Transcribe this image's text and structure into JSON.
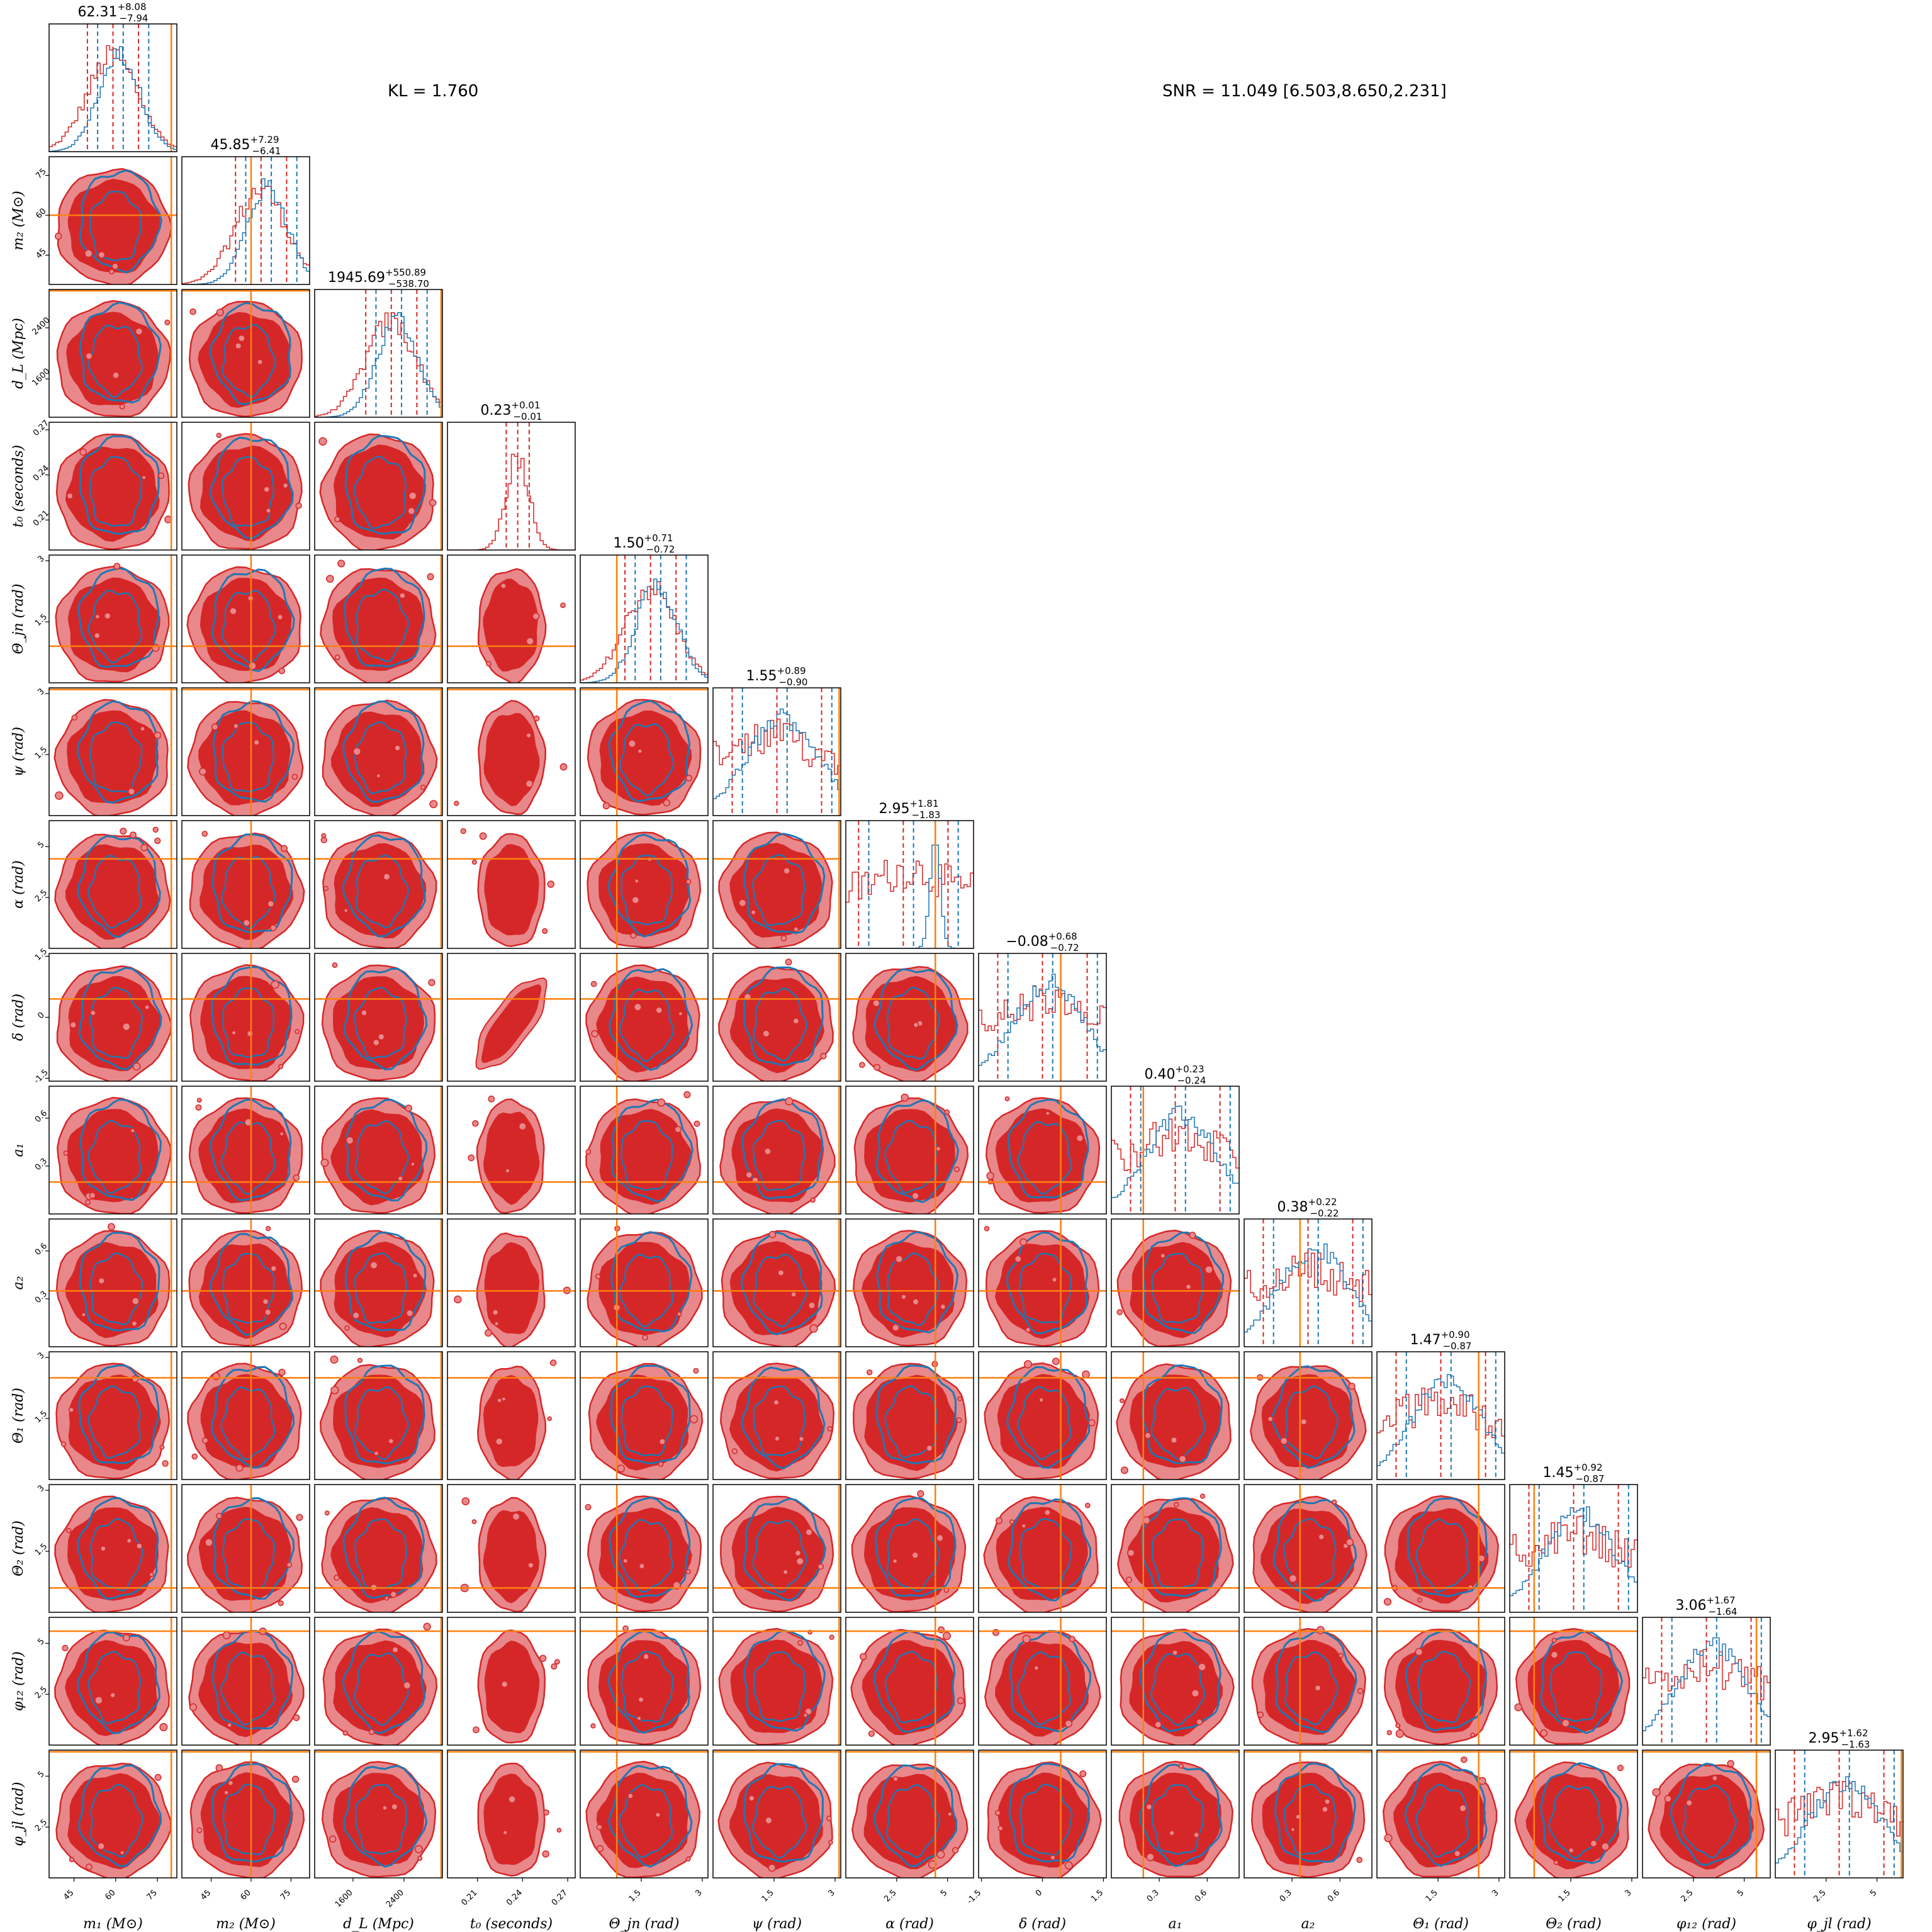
{
  "annotations": {
    "kl": "KL = 1.760",
    "snr": "SNR = 11.049 [6.503,8.650,2.231]"
  },
  "colors": {
    "posterior_a": "#d62728",
    "posterior_a_fill": "#e8888b",
    "posterior_b": "#1f77b4",
    "truth": "#ff7f0e"
  },
  "chart_data": {
    "type": "corner",
    "parameters": [
      {
        "label": "m_1 (M⊙)",
        "display": "m₁ (M⊙)",
        "range": [
          36,
          82
        ],
        "ticks": [
          45,
          60,
          75
        ],
        "truth": 80,
        "title": {
          "median": "62.31",
          "plus": "+8.08",
          "minus": "−7.94"
        }
      },
      {
        "label": "m_2 (M⊙)",
        "display": "m₂ (M⊙)",
        "range": [
          34,
          82
        ],
        "ticks": [
          45,
          60,
          75
        ],
        "truth": 60,
        "title": {
          "median": "45.85",
          "plus": "+7.29",
          "minus": "−6.41"
        }
      },
      {
        "label": "d_L (Mpc)",
        "display": "d_L (Mpc)",
        "range": [
          1000,
          3000
        ],
        "ticks": [
          1600,
          2400
        ],
        "truth": 2980,
        "title": {
          "median": "1945.69",
          "plus": "+550.89",
          "minus": "−538.70"
        }
      },
      {
        "label": "t_0 (seconds)",
        "display": "t₀ (seconds)",
        "range": [
          0.19,
          0.275
        ],
        "ticks": [
          0.21,
          0.24,
          0.27
        ],
        "truth": null,
        "title": {
          "median": "0.23",
          "plus": "+0.01",
          "minus": "−0.01"
        }
      },
      {
        "label": "Θ_jn (rad)",
        "display": "Θ_jn (rad)",
        "range": [
          0,
          3.14
        ],
        "ticks": [
          1.5,
          3.0
        ],
        "truth": 0.9,
        "title": {
          "median": "1.50",
          "plus": "+0.71",
          "minus": "−0.72"
        }
      },
      {
        "label": "ψ (rad)",
        "display": "ψ (rad)",
        "range": [
          0,
          3.14
        ],
        "ticks": [
          1.5,
          3.0
        ],
        "truth": 3.1,
        "title": {
          "median": "1.55",
          "plus": "+0.89",
          "minus": "−0.90"
        }
      },
      {
        "label": "α (rad)",
        "display": "α (rad)",
        "range": [
          0,
          6.28
        ],
        "ticks": [
          2.5,
          5.0
        ],
        "truth": 4.4,
        "title": {
          "median": "2.95",
          "plus": "+1.81",
          "minus": "−1.83"
        }
      },
      {
        "label": "δ (rad)",
        "display": "δ (rad)",
        "range": [
          -1.57,
          1.57
        ],
        "ticks": [
          -1.5,
          0.0,
          1.5
        ],
        "truth": 0.45,
        "title": {
          "median": "−0.08",
          "plus": "+0.68",
          "minus": "−0.72"
        }
      },
      {
        "label": "a_1",
        "display": "a₁",
        "range": [
          0,
          0.8
        ],
        "ticks": [
          0.3,
          0.6
        ],
        "truth": 0.2,
        "title": {
          "median": "0.40",
          "plus": "+0.23",
          "minus": "−0.24"
        }
      },
      {
        "label": "a_2",
        "display": "a₂",
        "range": [
          0,
          0.8
        ],
        "ticks": [
          0.3,
          0.6
        ],
        "truth": 0.35,
        "title": {
          "median": "0.38",
          "plus": "+0.22",
          "minus": "−0.22"
        }
      },
      {
        "label": "Θ_1 (rad)",
        "display": "Θ₁ (rad)",
        "range": [
          0,
          3.14
        ],
        "ticks": [
          1.5,
          3.0
        ],
        "truth": 2.5,
        "title": {
          "median": "1.47",
          "plus": "+0.90",
          "minus": "−0.87"
        }
      },
      {
        "label": "Θ_2 (rad)",
        "display": "Θ₂ (rad)",
        "range": [
          0,
          3.14
        ],
        "ticks": [
          1.5,
          3.0
        ],
        "truth": 0.6,
        "title": {
          "median": "1.45",
          "plus": "+0.92",
          "minus": "−0.87"
        }
      },
      {
        "label": "φ_12 (rad)",
        "display": "φ₁₂ (rad)",
        "range": [
          0,
          6.28
        ],
        "ticks": [
          2.5,
          5.0
        ],
        "truth": 5.6,
        "title": {
          "median": "3.06",
          "plus": "+1.67",
          "minus": "−1.64"
        }
      },
      {
        "label": "φ_jl (rad)",
        "display": "φ_jl (rad)",
        "range": [
          0,
          6.28
        ],
        "ticks": [
          2.5,
          5.0
        ],
        "truth": 6.2,
        "title": {
          "median": "2.95",
          "plus": "+1.62",
          "minus": "−1.63"
        }
      }
    ]
  }
}
